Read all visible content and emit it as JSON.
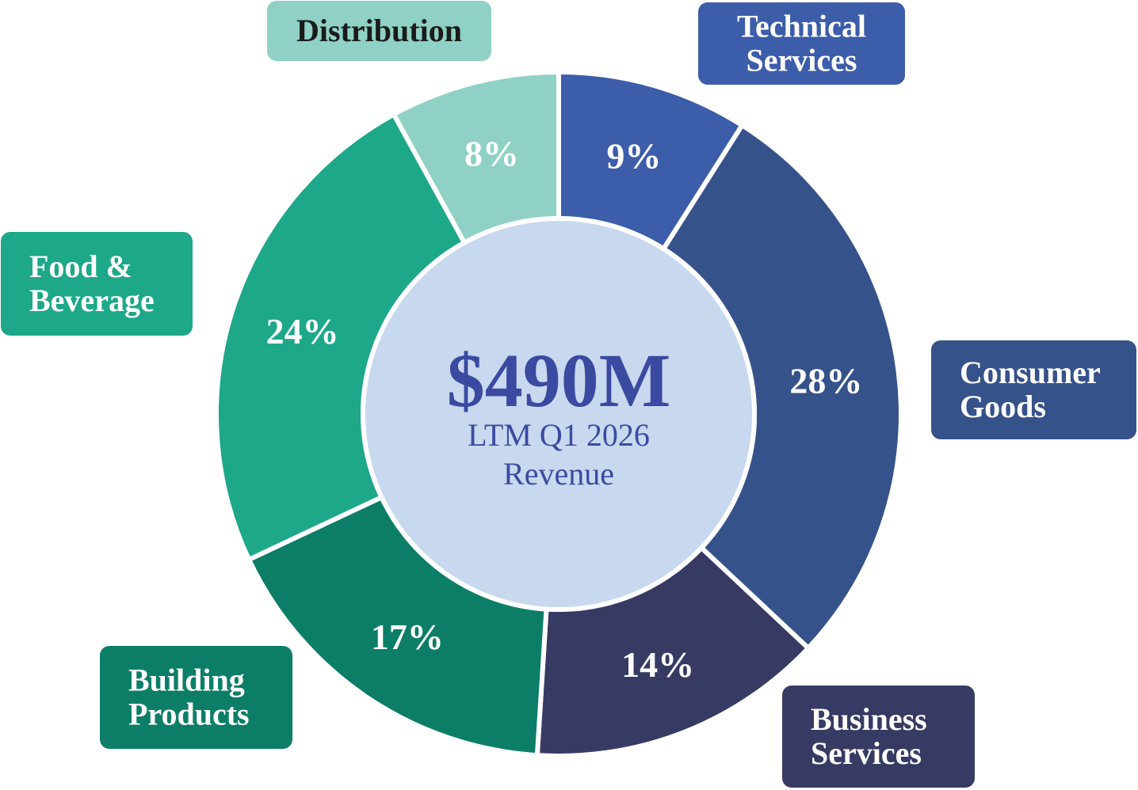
{
  "chart_data": {
    "type": "pie",
    "center": {
      "value": "$490M",
      "subtitle_line1": "LTM Q1 2026",
      "subtitle_line2": "Revenue"
    },
    "segments": [
      {
        "name": "Technical Services",
        "label_lines": [
          "Technical",
          "Services"
        ],
        "value": 9,
        "value_label": "9%",
        "color": "#3c5daa",
        "text_color": "#ffffff"
      },
      {
        "name": "Consumer Goods",
        "label_lines": [
          "Consumer",
          "Goods"
        ],
        "value": 28,
        "value_label": "28%",
        "color": "#36528a",
        "text_color": "#ffffff"
      },
      {
        "name": "Business Services",
        "label_lines": [
          "Business",
          "Services"
        ],
        "value": 14,
        "value_label": "14%",
        "color": "#373b63",
        "text_color": "#ffffff"
      },
      {
        "name": "Building Products",
        "label_lines": [
          "Building",
          "Products"
        ],
        "value": 17,
        "value_label": "17%",
        "color": "#0c7e67",
        "text_color": "#ffffff"
      },
      {
        "name": "Food & Beverage",
        "label_lines": [
          "Food &",
          "Beverage"
        ],
        "value": 24,
        "value_label": "24%",
        "color": "#1da88a",
        "text_color": "#ffffff"
      },
      {
        "name": "Distribution",
        "label_lines": [
          "Distribution"
        ],
        "value": 8,
        "value_label": "8%",
        "color": "#8fd1c5",
        "text_color": "#1b1b1b"
      }
    ],
    "center_fill": "#c8d8ee",
    "center_text_color": "#3b4aa0"
  }
}
